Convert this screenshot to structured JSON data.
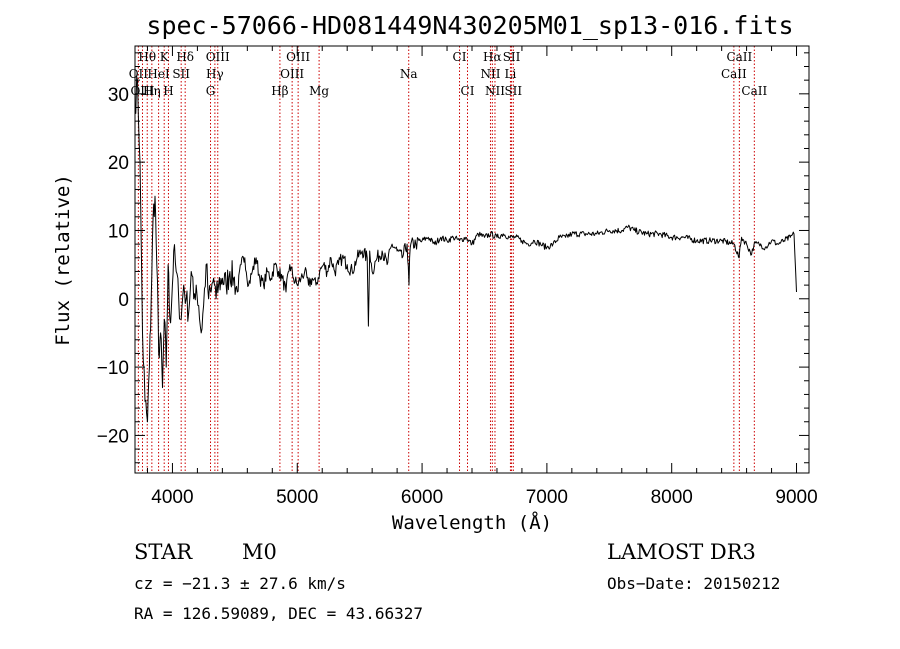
{
  "chart_data": {
    "type": "line",
    "title": "spec-57066-HD081449N430205M01_sp13-016.fits",
    "xlabel": "Wavelength (Å)",
    "ylabel": "Flux (relative)",
    "xlim": [
      3700,
      9100
    ],
    "ylim": [
      -25.5,
      37
    ],
    "xticks": [
      4000,
      5000,
      6000,
      7000,
      8000,
      9000
    ],
    "yticks": [
      -20,
      -10,
      0,
      10,
      20,
      30
    ],
    "x_minor_step": 200,
    "y_minor_step": 2,
    "grid": false,
    "series": [
      {
        "name": "spectrum",
        "x": [
          3700,
          3720,
          3740,
          3760,
          3780,
          3800,
          3815,
          3830,
          3845,
          3860,
          3875,
          3890,
          3905,
          3920,
          3935,
          3950,
          3965,
          3980,
          3995,
          4010,
          4030,
          4050,
          4070,
          4090,
          4110,
          4130,
          4150,
          4170,
          4190,
          4210,
          4230,
          4250,
          4270,
          4290,
          4310,
          4330,
          4350,
          4370,
          4400,
          4430,
          4460,
          4490,
          4520,
          4550,
          4580,
          4610,
          4640,
          4670,
          4700,
          4730,
          4760,
          4790,
          4820,
          4850,
          4880,
          4910,
          4940,
          4970,
          5000,
          5030,
          5060,
          5090,
          5120,
          5150,
          5180,
          5210,
          5240,
          5270,
          5300,
          5330,
          5360,
          5400,
          5440,
          5480,
          5520,
          5560,
          5570,
          5580,
          5600,
          5640,
          5680,
          5720,
          5760,
          5800,
          5840,
          5880,
          5895,
          5900,
          5910,
          5950,
          6000,
          6050,
          6100,
          6150,
          6200,
          6250,
          6300,
          6350,
          6400,
          6450,
          6500,
          6550,
          6600,
          6650,
          6700,
          6750,
          6800,
          6850,
          6900,
          6950,
          7000,
          7050,
          7100,
          7150,
          7200,
          7300,
          7400,
          7500,
          7600,
          7650,
          7700,
          7800,
          7900,
          8000,
          8100,
          8200,
          8300,
          8400,
          8500,
          8540,
          8560,
          8600,
          8640,
          8660,
          8700,
          8750,
          8800,
          8850,
          8900,
          8950,
          8980,
          9000
        ],
        "values": [
          28,
          32,
          20,
          -5,
          -15,
          -18,
          -10,
          0,
          12,
          15,
          5,
          -8,
          -5,
          -13,
          -3,
          -10,
          5,
          -3,
          0,
          7,
          4,
          0,
          -3,
          2,
          0,
          -2,
          4,
          0,
          2,
          -1,
          -5,
          -1,
          5,
          0,
          1,
          3,
          0,
          2,
          3,
          2,
          4,
          3,
          1,
          5,
          6,
          2,
          4,
          6,
          3,
          2,
          4,
          3,
          5,
          4,
          3,
          1,
          5,
          3,
          2,
          3,
          4,
          2,
          3,
          2,
          4,
          5,
          4,
          6,
          4,
          5,
          6,
          5,
          4,
          6,
          7,
          6,
          -4,
          7,
          4,
          6,
          7,
          5,
          8,
          7,
          6,
          8,
          2,
          6,
          8,
          8,
          8.5,
          9,
          8,
          9,
          8.5,
          9,
          8.5,
          9,
          8,
          9.5,
          9,
          9.5,
          9,
          9.5,
          9,
          9,
          8.5,
          8,
          8.5,
          8,
          7.5,
          8,
          9,
          9,
          9.5,
          9.5,
          9.5,
          10,
          10,
          10.5,
          10,
          9.5,
          9.5,
          9,
          9,
          8.5,
          8.5,
          8.5,
          8,
          6,
          9,
          8,
          6.5,
          8,
          8,
          7.5,
          8.5,
          8,
          8.5,
          9,
          9.5,
          1
        ]
      }
    ],
    "emission_lines": [
      {
        "label": "Hθ",
        "x": 3798,
        "row": 0
      },
      {
        "label": "K",
        "x": 3934,
        "row": 0
      },
      {
        "label": "Hδ",
        "x": 4102,
        "row": 0
      },
      {
        "label": "OIII",
        "x": 4363,
        "row": 0
      },
      {
        "label": "OIII",
        "x": 5007,
        "row": 0
      },
      {
        "label": "CI",
        "x": 6300,
        "row": 0
      },
      {
        "label": "Hα",
        "x": 6563,
        "row": 0
      },
      {
        "label": "SII",
        "x": 6717,
        "row": 0
      },
      {
        "label": "CaII",
        "x": 8542,
        "row": 0
      },
      {
        "label": "OII",
        "x": 3727,
        "row": 1
      },
      {
        "label": "HeI",
        "x": 3889,
        "row": 1
      },
      {
        "label": "SII",
        "x": 4070,
        "row": 1
      },
      {
        "label": "Hγ",
        "x": 4340,
        "row": 1
      },
      {
        "label": "OIII",
        "x": 4959,
        "row": 1
      },
      {
        "label": "Na",
        "x": 5893,
        "row": 1
      },
      {
        "label": "NII",
        "x": 6548,
        "row": 1
      },
      {
        "label": "Li",
        "x": 6708,
        "row": 1
      },
      {
        "label": "CaII",
        "x": 8498,
        "row": 1
      },
      {
        "label": "OIII",
        "x": 3760,
        "row": 2
      },
      {
        "label": "Hη",
        "x": 3835,
        "row": 2
      },
      {
        "label": "H",
        "x": 3968,
        "row": 2
      },
      {
        "label": "G",
        "x": 4305,
        "row": 2
      },
      {
        "label": "Hβ",
        "x": 4861,
        "row": 2
      },
      {
        "label": "Mg",
        "x": 5175,
        "row": 2
      },
      {
        "label": "CI",
        "x": 6364,
        "row": 2
      },
      {
        "label": "NII",
        "x": 6584,
        "row": 2
      },
      {
        "label": "SII",
        "x": 6731,
        "row": 2
      },
      {
        "label": "CaII",
        "x": 8662,
        "row": 2
      }
    ],
    "line_color": "#cc0000"
  },
  "info": {
    "class_label": "STAR",
    "subclass_label": "M0",
    "survey_label": "LAMOST DR3",
    "cz_text": "cz = −21.3 ± 27.6 km/s",
    "obs_date_text": "Obs−Date: 20150212",
    "coords_text": "RA = 126.59089, DEC =  43.66327"
  }
}
